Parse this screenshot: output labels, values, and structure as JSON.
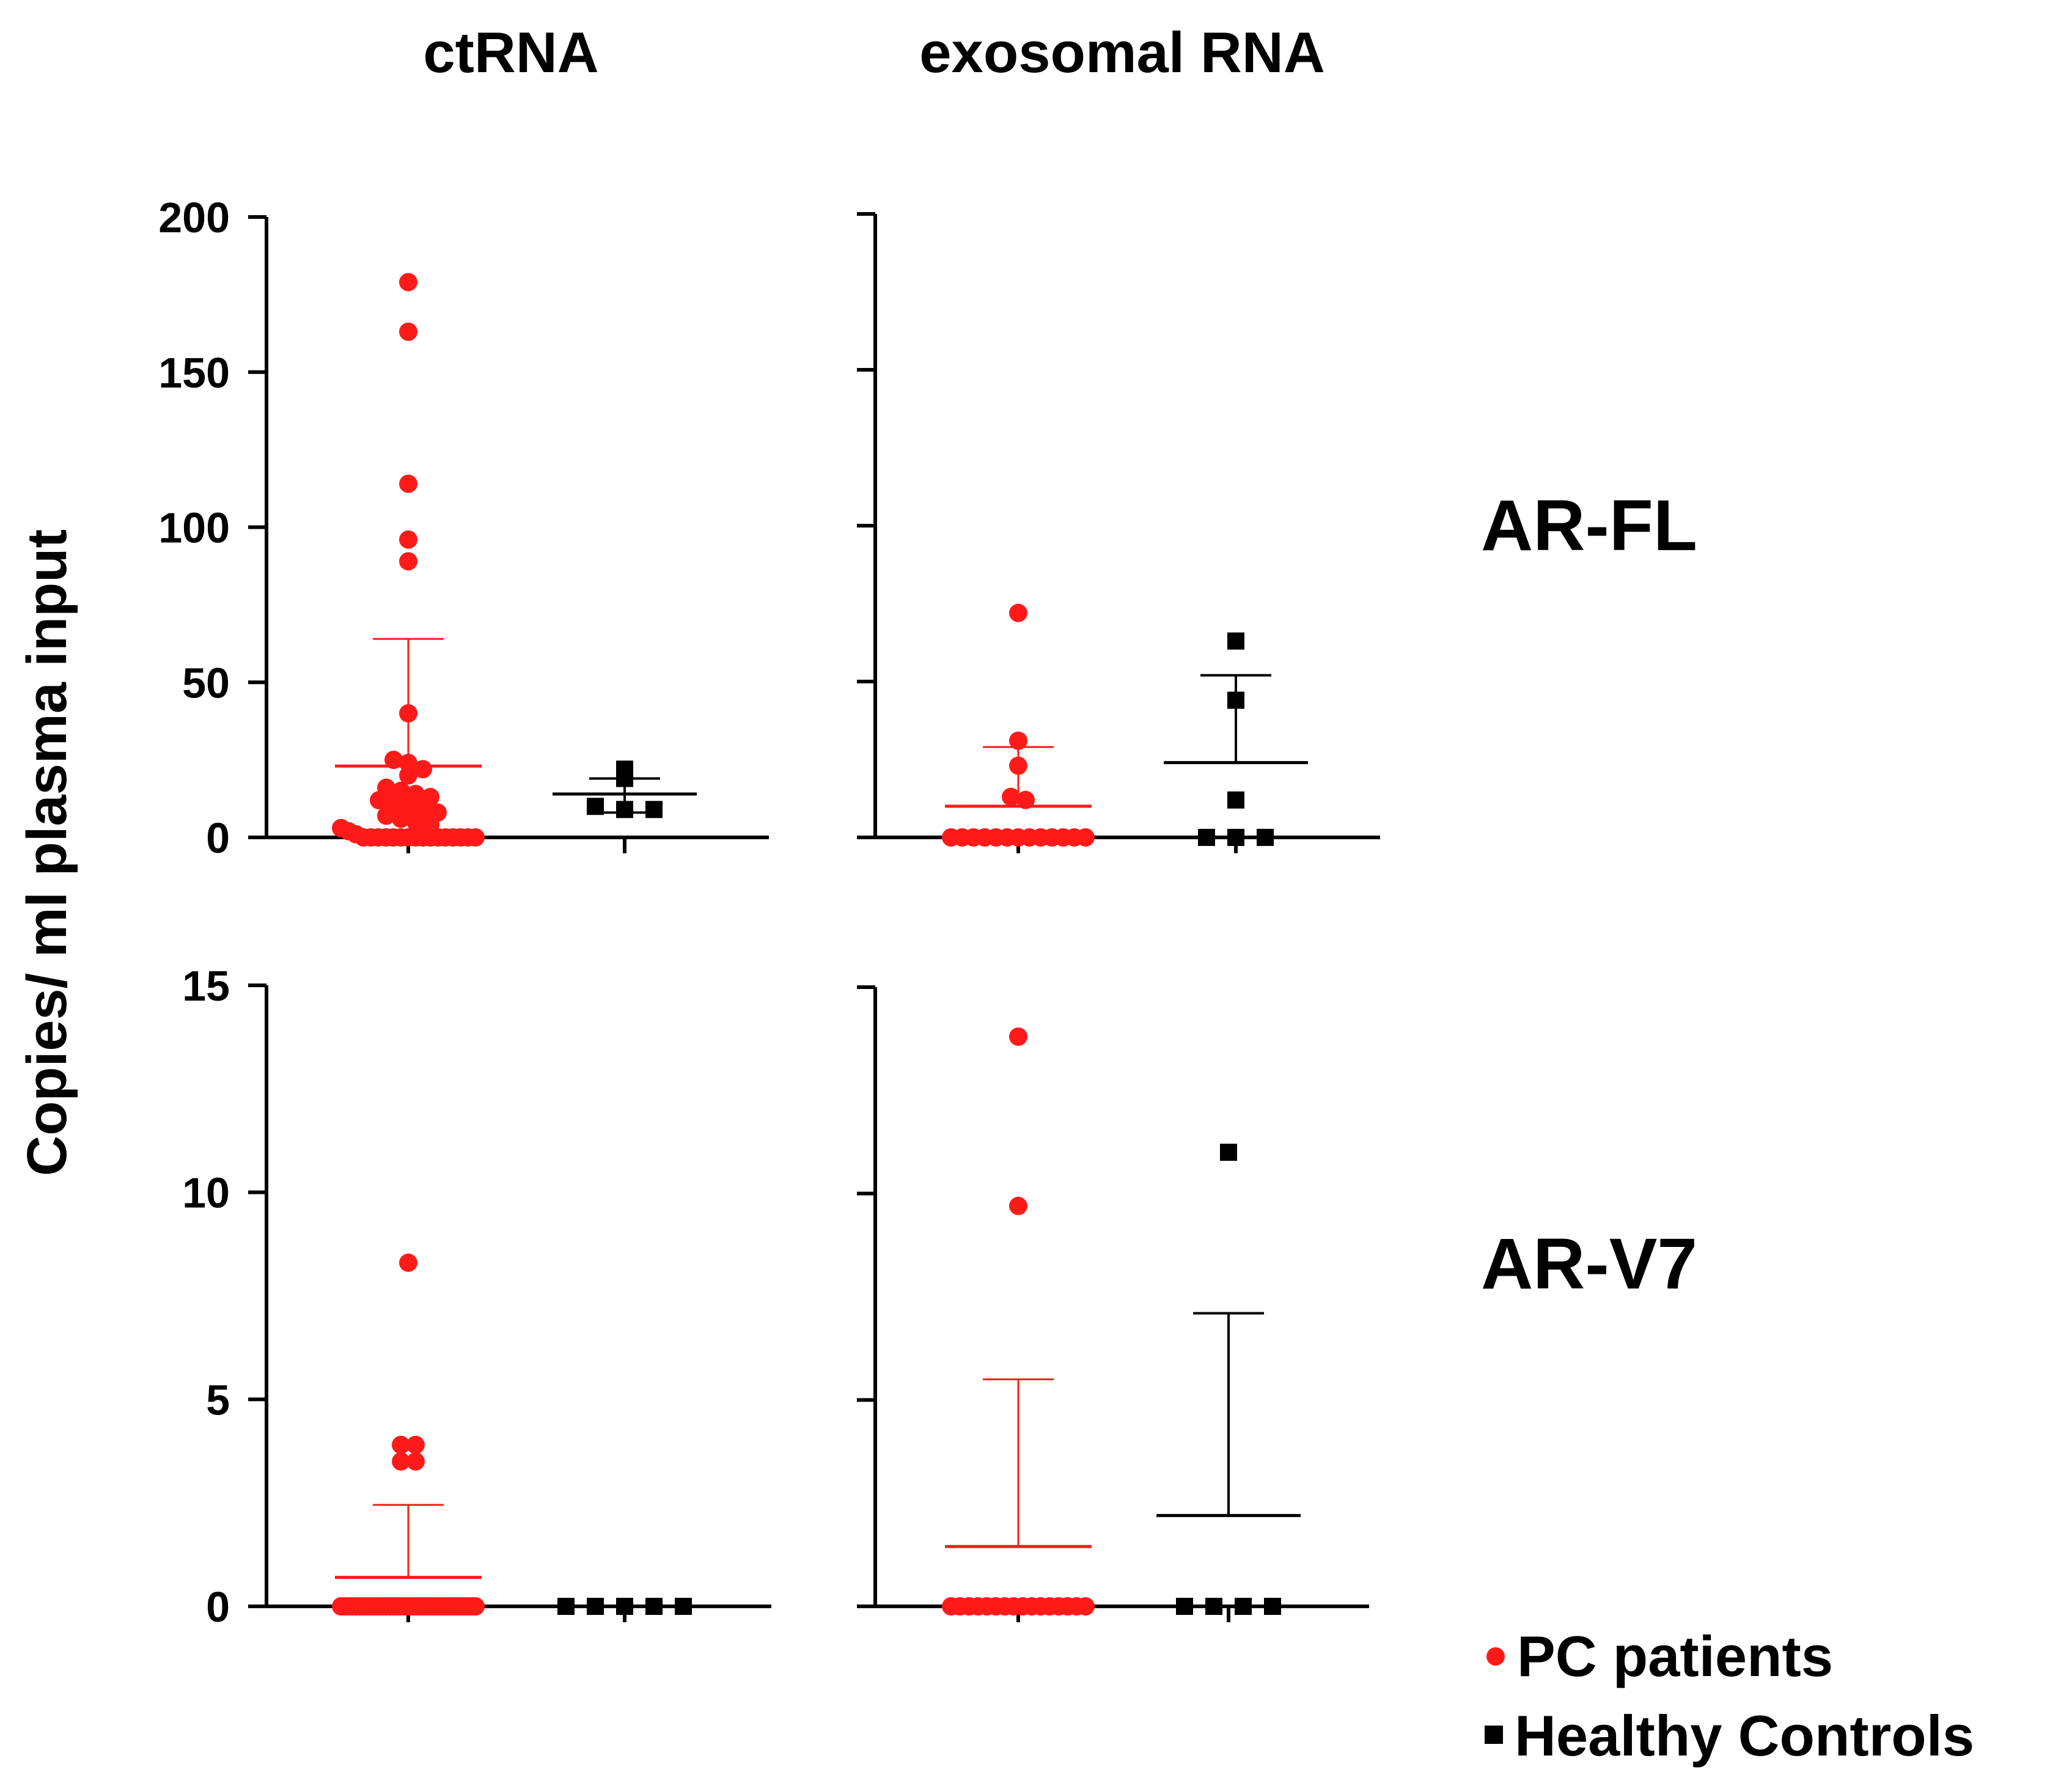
{
  "figure": {
    "col_titles": [
      "ctRNA",
      "exosomal RNA"
    ],
    "row_labels": [
      "AR-FL",
      "AR-V7"
    ],
    "y_axis_title": "Copies/ ml plasma input",
    "legend": [
      {
        "label": "PC patients",
        "marker": "circle",
        "color": "#ff1a1a"
      },
      {
        "label": "Healthy Controls",
        "marker": "square",
        "color": "#000000"
      }
    ]
  },
  "colors": {
    "pc_patients": "#ff1a1a",
    "healthy_controls": "#000000",
    "axis": "#000000"
  },
  "chart_data": [
    {
      "type": "scatter",
      "panel": "AR-FL / ctRNA",
      "categories": [
        "PC patients",
        "Healthy Controls"
      ],
      "ylim": [
        0,
        200
      ],
      "yticks": [
        0,
        50,
        100,
        150,
        200
      ],
      "ytick_labels": [
        "0",
        "50",
        "100",
        "150",
        "200"
      ],
      "series": [
        {
          "name": "PC patients",
          "values": [
            179,
            163,
            114,
            96,
            89,
            40,
            25,
            24,
            22,
            20,
            16,
            15,
            14,
            13,
            12,
            11,
            10,
            9,
            8,
            7,
            6,
            5,
            4,
            3,
            2,
            1,
            0,
            0,
            0,
            0,
            0,
            0,
            0,
            0,
            0,
            0,
            0,
            0,
            0,
            0,
            0,
            0
          ],
          "mean": 23,
          "sd_upper": 64
        },
        {
          "name": "Healthy Controls",
          "values": [
            22,
            19,
            10,
            9,
            9
          ],
          "mean": 14,
          "sd_upper": 19,
          "sd_lower": 8
        }
      ]
    },
    {
      "type": "scatter",
      "panel": "AR-FL / exosomal RNA",
      "categories": [
        "PC patients",
        "Healthy Controls"
      ],
      "ylim": [
        0,
        200
      ],
      "yticks": [
        0,
        50,
        100,
        150,
        200
      ],
      "series": [
        {
          "name": "PC patients",
          "values": [
            72,
            31,
            23,
            13,
            12,
            0,
            0,
            0,
            0,
            0,
            0,
            0,
            0,
            0,
            0,
            0,
            0,
            0
          ],
          "mean": 10,
          "sd_upper": 29
        },
        {
          "name": "Healthy Controls",
          "values": [
            63,
            44,
            12,
            0,
            0,
            0
          ],
          "mean": 24,
          "sd_upper": 52
        }
      ]
    },
    {
      "type": "scatter",
      "panel": "AR-V7 / ctRNA",
      "categories": [
        "PC patients",
        "Healthy Controls"
      ],
      "ylim": [
        0,
        15
      ],
      "yticks": [
        0,
        5,
        10,
        15
      ],
      "ytick_labels": [
        "0",
        "5",
        "10",
        "15"
      ],
      "series": [
        {
          "name": "PC patients",
          "values": [
            8.3,
            3.9,
            3.9,
            3.5,
            3.5,
            0,
            0,
            0,
            0,
            0,
            0,
            0,
            0,
            0,
            0,
            0,
            0,
            0,
            0,
            0,
            0,
            0,
            0,
            0,
            0,
            0,
            0,
            0,
            0,
            0,
            0,
            0,
            0,
            0,
            0,
            0,
            0,
            0,
            0,
            0,
            0,
            0
          ],
          "mean": 0.7,
          "sd_upper": 2.45
        },
        {
          "name": "Healthy Controls",
          "values": [
            0,
            0,
            0,
            0,
            0
          ],
          "mean": 0,
          "sd_upper": 0
        }
      ]
    },
    {
      "type": "scatter",
      "panel": "AR-V7 / exosomal RNA",
      "categories": [
        "PC patients",
        "Healthy Controls"
      ],
      "ylim": [
        0,
        15
      ],
      "yticks": [
        0,
        5,
        10,
        15
      ],
      "series": [
        {
          "name": "PC patients",
          "values": [
            13.8,
            9.7,
            0,
            0,
            0,
            0,
            0,
            0,
            0,
            0,
            0,
            0,
            0,
            0,
            0,
            0,
            0,
            0
          ],
          "mean": 1.45,
          "sd_upper": 5.5
        },
        {
          "name": "Healthy Controls",
          "values": [
            11.0,
            0,
            0,
            0,
            0
          ],
          "mean": 2.2,
          "sd_upper": 7.1
        }
      ]
    }
  ]
}
